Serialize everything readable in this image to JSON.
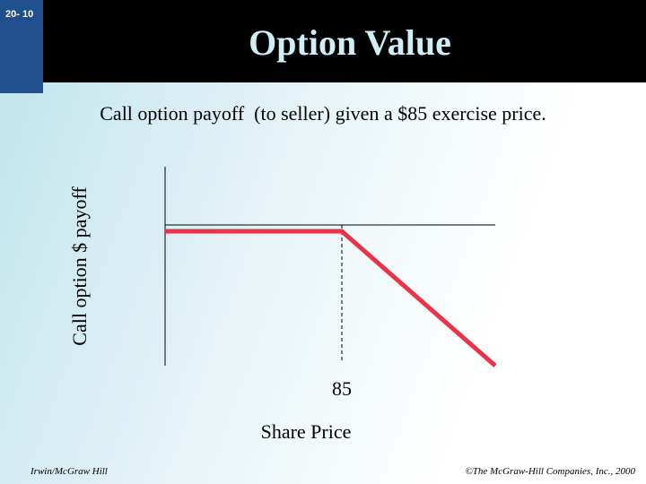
{
  "slide": {
    "number": "20- 10",
    "title": "Option Value",
    "subtitle": "Call option payoff  (to seller) given a $85 exercise price.",
    "footer_left": "Irwin/McGraw Hill",
    "footer_right": "©The McGraw-Hill Companies, Inc., 2000"
  },
  "colors": {
    "title_bar": "#000000",
    "title_text": "#cfeef6",
    "slide_tab": "#1f4f8c",
    "payoff_line": "#e8344a",
    "axis": "#000000"
  },
  "chart_data": {
    "type": "line",
    "title": "",
    "xlabel": "Share Price",
    "ylabel": "Call option $ payoff",
    "x_ticks": [
      "85"
    ],
    "exercise_price": 85,
    "series": [
      {
        "x": [
          0,
          85,
          170
        ],
        "y": [
          0,
          0,
          -85
        ]
      }
    ],
    "xlim": [
      0,
      170
    ],
    "ylim": [
      -85,
      0
    ],
    "grid": false,
    "legend": "none"
  }
}
